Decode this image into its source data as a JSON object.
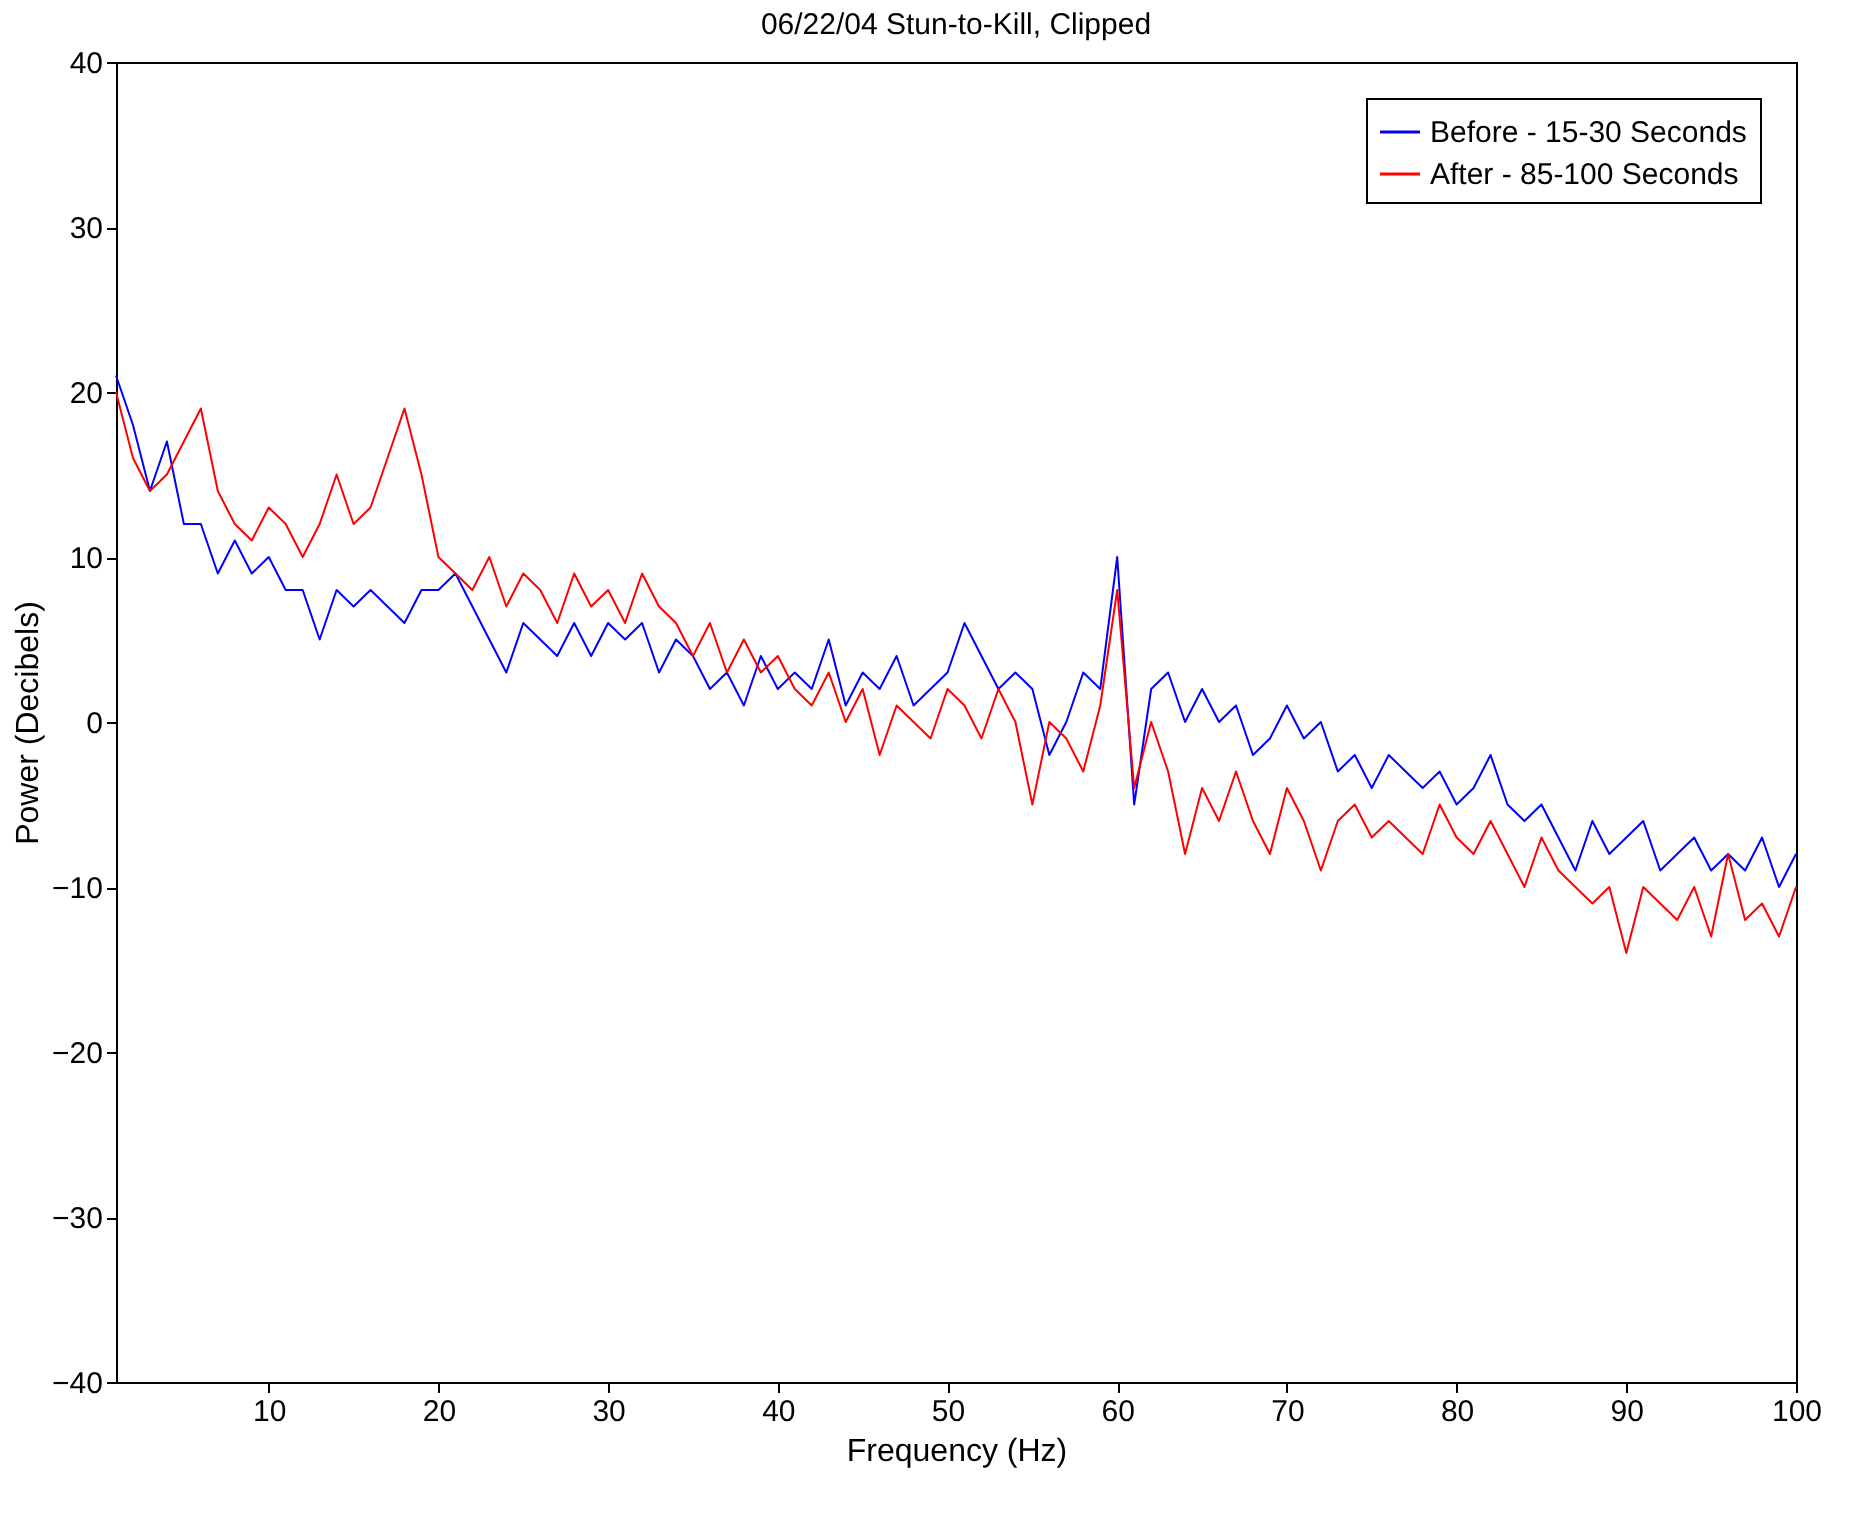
{
  "chart_data": {
    "type": "line",
    "title": "06/22/04 Stun-to-Kill, Clipped",
    "xlabel": "Frequency (Hz)",
    "ylabel": "Power (Decibels)",
    "x": [
      1,
      2,
      3,
      4,
      5,
      6,
      7,
      8,
      9,
      10,
      11,
      12,
      13,
      14,
      15,
      16,
      17,
      18,
      19,
      20,
      21,
      22,
      23,
      24,
      25,
      26,
      27,
      28,
      29,
      30,
      31,
      32,
      33,
      34,
      35,
      36,
      37,
      38,
      39,
      40,
      41,
      42,
      43,
      44,
      45,
      46,
      47,
      48,
      49,
      50,
      51,
      52,
      53,
      54,
      55,
      56,
      57,
      58,
      59,
      60,
      61,
      62,
      63,
      64,
      65,
      66,
      67,
      68,
      69,
      70,
      71,
      72,
      73,
      74,
      75,
      76,
      77,
      78,
      79,
      80,
      81,
      82,
      83,
      84,
      85,
      86,
      87,
      88,
      89,
      90,
      91,
      92,
      93,
      94,
      95,
      96,
      97,
      98,
      99,
      100
    ],
    "series": [
      {
        "name": "Before - 15-30 Seconds",
        "color": "#0000ff",
        "values": [
          21,
          18,
          14,
          17,
          12,
          12,
          9,
          11,
          9,
          10,
          8,
          8,
          5,
          8,
          7,
          8,
          7,
          6,
          8,
          8,
          9,
          7,
          5,
          3,
          6,
          5,
          4,
          6,
          4,
          6,
          5,
          6,
          3,
          5,
          4,
          2,
          3,
          1,
          4,
          2,
          3,
          2,
          5,
          1,
          3,
          2,
          4,
          1,
          2,
          3,
          6,
          4,
          2,
          3,
          2,
          -2,
          0,
          3,
          2,
          10,
          -5,
          2,
          3,
          0,
          2,
          0,
          1,
          -2,
          -1,
          1,
          -1,
          0,
          -3,
          -2,
          -4,
          -2,
          -3,
          -4,
          -3,
          -5,
          -4,
          -2,
          -5,
          -6,
          -5,
          -7,
          -9,
          -6,
          -8,
          -7,
          -6,
          -9,
          -8,
          -7,
          -9,
          -8,
          -9,
          -7,
          -10,
          -8
        ]
      },
      {
        "name": "After - 85-100 Seconds",
        "color": "#ff0000",
        "values": [
          20,
          16,
          14,
          15,
          17,
          19,
          14,
          12,
          11,
          13,
          12,
          10,
          12,
          15,
          12,
          13,
          16,
          19,
          15,
          10,
          9,
          8,
          10,
          7,
          9,
          8,
          6,
          9,
          7,
          8,
          6,
          9,
          7,
          6,
          4,
          6,
          3,
          5,
          3,
          4,
          2,
          1,
          3,
          0,
          2,
          -2,
          1,
          0,
          -1,
          2,
          1,
          -1,
          2,
          0,
          -5,
          0,
          -1,
          -3,
          1,
          8,
          -4,
          0,
          -3,
          -8,
          -4,
          -6,
          -3,
          -6,
          -8,
          -4,
          -6,
          -9,
          -6,
          -5,
          -7,
          -6,
          -7,
          -8,
          -5,
          -7,
          -8,
          -6,
          -8,
          -10,
          -7,
          -9,
          -10,
          -11,
          -10,
          -14,
          -10,
          -11,
          -12,
          -10,
          -13,
          -8,
          -12,
          -11,
          -13,
          -10
        ]
      }
    ],
    "xlim": [
      1,
      100
    ],
    "xticks": [
      10,
      20,
      30,
      40,
      50,
      60,
      70,
      80,
      90,
      100
    ],
    "ylim": [
      -40,
      40
    ],
    "yticks": [
      -40,
      -30,
      -20,
      -10,
      0,
      10,
      20,
      30,
      40
    ],
    "grid": false,
    "legend": "top right",
    "marker": "none",
    "line_style": "solid"
  }
}
